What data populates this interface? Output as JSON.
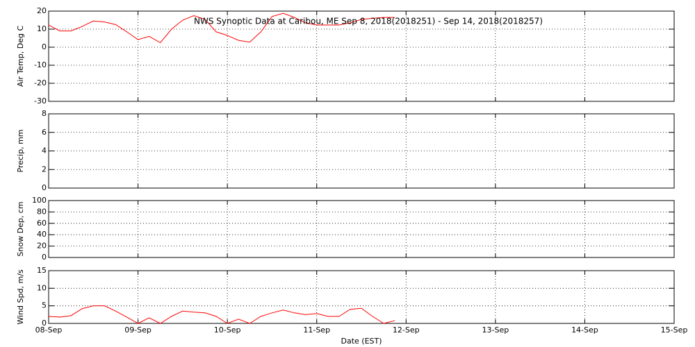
{
  "chart_data": [
    {
      "type": "line",
      "title": "NWS Synoptic Data at Caribou, ME   Sep  8, 2018(2018251) - Sep 14, 2018(2018257)",
      "ylabel": "Air Temp, Deg C",
      "xlim": [
        0,
        7
      ],
      "ylim": [
        -30,
        20
      ],
      "yticks": [
        -30,
        -20,
        -10,
        0,
        10,
        20
      ],
      "xticks": [
        0,
        1,
        2,
        3,
        4,
        5,
        6,
        7
      ],
      "grid": true,
      "x": [
        0,
        0.125,
        0.25,
        0.375,
        0.5,
        0.625,
        0.75,
        0.875,
        1,
        1.125,
        1.25,
        1.375,
        1.5,
        1.625,
        1.75,
        1.875,
        2,
        2.125,
        2.25,
        2.375,
        2.5,
        2.625,
        2.75,
        2.875,
        3,
        3.125,
        3.25,
        3.375,
        3.5,
        3.625,
        3.75,
        3.875
      ],
      "series": [
        {
          "color": "#ff0000",
          "values": [
            12.3,
            9,
            9,
            11.5,
            14.5,
            14,
            12.5,
            8.5,
            4.2,
            6,
            2.5,
            10,
            15,
            17.5,
            15.4,
            8.5,
            6.5,
            3.8,
            2.8,
            8.5,
            17,
            18.8,
            16.5,
            13.5,
            12.3,
            12.3,
            12.3,
            13.5,
            15.4,
            16,
            16.5,
            16.5
          ]
        }
      ]
    },
    {
      "type": "line",
      "ylabel": "Precip, mm",
      "xlim": [
        0,
        7
      ],
      "ylim": [
        0,
        8
      ],
      "yticks": [
        0,
        2,
        4,
        6,
        8
      ],
      "xticks": [
        0,
        1,
        2,
        3,
        4,
        5,
        6,
        7
      ],
      "grid": true
    },
    {
      "type": "line",
      "ylabel": "Snow Dep, cm",
      "xlim": [
        0,
        7
      ],
      "ylim": [
        0,
        100
      ],
      "yticks": [
        0,
        20,
        40,
        60,
        80,
        100
      ],
      "xticks": [
        0,
        1,
        2,
        3,
        4,
        5,
        6,
        7
      ],
      "grid": true
    },
    {
      "type": "line",
      "ylabel": "Wind Spd, m/s",
      "xlabel": "Date (EST)",
      "xlim": [
        0,
        7
      ],
      "ylim": [
        0,
        15
      ],
      "yticks": [
        0,
        5,
        10,
        15
      ],
      "xticks": [
        {
          "value": 0,
          "label": "08-Sep"
        },
        {
          "value": 1,
          "label": "09-Sep"
        },
        {
          "value": 2,
          "label": "10-Sep"
        },
        {
          "value": 3,
          "label": "11-Sep"
        },
        {
          "value": 4,
          "label": "12-Sep"
        },
        {
          "value": 5,
          "label": "13-Sep"
        },
        {
          "value": 6,
          "label": "14-Sep"
        },
        {
          "value": 7,
          "label": "15-Sep"
        }
      ],
      "grid": true,
      "x": [
        0,
        0.125,
        0.25,
        0.375,
        0.5,
        0.625,
        0.75,
        0.875,
        1,
        1.125,
        1.25,
        1.375,
        1.5,
        1.625,
        1.75,
        1.875,
        2,
        2.125,
        2.25,
        2.375,
        2.5,
        2.625,
        2.75,
        2.875,
        3,
        3.125,
        3.25,
        3.375,
        3.5,
        3.625,
        3.75,
        3.875
      ],
      "series": [
        {
          "color": "#ff0000",
          "values": [
            2,
            1.8,
            2.2,
            4.2,
            5,
            5,
            3.5,
            1.8,
            0,
            1.6,
            0,
            2,
            3.5,
            3.2,
            3,
            2,
            0,
            1.2,
            0,
            2,
            3,
            3.8,
            3,
            2.5,
            2.8,
            2,
            2,
            4,
            4.3,
            2,
            0,
            0.8
          ]
        }
      ]
    }
  ]
}
